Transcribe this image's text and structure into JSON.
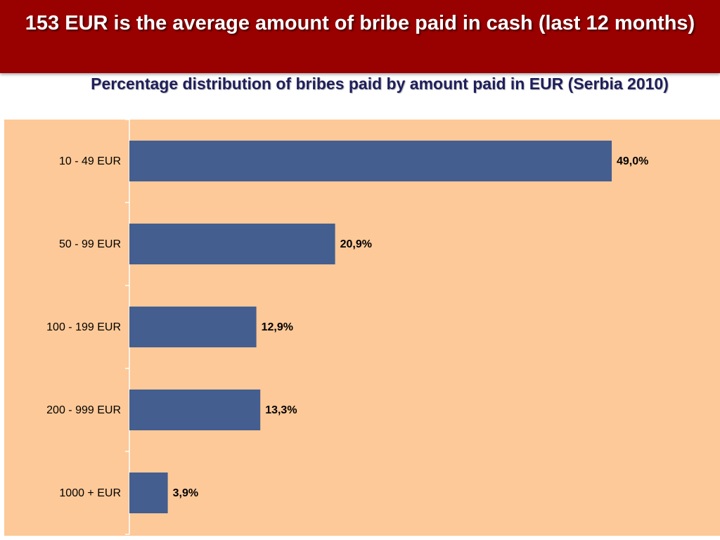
{
  "slide": {
    "title": "153 EUR is the average amount of bribe paid in cash (last 12 months)"
  },
  "chart_data": {
    "type": "bar",
    "orientation": "horizontal",
    "title": "Percentage distribution of bribes paid by amount paid in EUR (Serbia 2010)",
    "categories": [
      "10 - 49 EUR",
      "50 - 99 EUR",
      "100 - 199 EUR",
      "200 - 999 EUR",
      "1000 + EUR"
    ],
    "values": [
      49.0,
      20.9,
      12.9,
      13.3,
      3.9
    ],
    "data_labels": [
      "49,0%",
      "20,9%",
      "12,9%",
      "13,3%",
      "3,9%"
    ],
    "xlim": [
      0,
      60
    ],
    "grid": false,
    "legend": "none",
    "colors": {
      "bar": "#445e8f",
      "plot_background": "#fdc998",
      "header": "#990000"
    }
  }
}
